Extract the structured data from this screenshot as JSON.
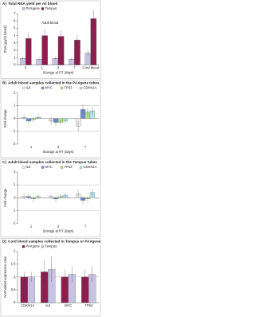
{
  "chart_data": [
    {
      "type": "bar",
      "label": "A)",
      "title": "Total RNA yield per ml blood",
      "ylabel": "RNA (µg/ml blood)",
      "xlabel": "Storage at RT (days)",
      "annotation": "Adult blood",
      "categories": [
        "0",
        "1",
        "3",
        "7",
        "Cord blood"
      ],
      "series": [
        {
          "name": "PAXgene",
          "color": "#c9c3e3",
          "values": [
            0.9,
            0.8,
            0.9,
            0.8,
            1.6
          ],
          "errors": [
            0.2,
            0.2,
            0.2,
            0.2,
            0.4
          ]
        },
        {
          "name": "Tempus",
          "color": "#8c1f4e",
          "values": [
            3.6,
            4.0,
            3.9,
            3.4,
            6.3
          ],
          "errors": [
            0.8,
            0.9,
            0.8,
            0.7,
            1.2
          ]
        }
      ],
      "ylim": [
        0,
        7
      ],
      "yticks": [
        0,
        1,
        2,
        3,
        4,
        5,
        6,
        7
      ]
    },
    {
      "type": "bar",
      "label": "B)",
      "title": "Adult blood samples collected in the PAXgene tubes",
      "ylabel": "Fold change",
      "xlabel": "Storage at RT (days)",
      "categories": [
        "1",
        "3",
        "7"
      ],
      "series": [
        {
          "name": "IL8",
          "color": "#eeeeee",
          "values": [
            0.1,
            -0.2,
            -0.6
          ],
          "errors": [
            0.2,
            0.3,
            0.4
          ]
        },
        {
          "name": "MYC",
          "color": "#6f8fd8",
          "values": [
            -0.2,
            -0.3,
            0.7
          ],
          "errors": [
            0.2,
            0.3,
            0.4
          ]
        },
        {
          "name": "TP53",
          "color": "#b9e08c",
          "values": [
            -0.1,
            -0.3,
            0.5
          ],
          "errors": [
            0.2,
            0.2,
            0.3
          ]
        },
        {
          "name": "CDKN1A",
          "color": "#b3e6f0",
          "values": [
            0.1,
            -0.2,
            0.6
          ],
          "errors": [
            0.2,
            0.2,
            0.3
          ]
        }
      ],
      "ylim": [
        -2,
        2
      ],
      "yticks": [
        -2,
        -1,
        0,
        1,
        2
      ],
      "hlines": [
        1,
        -1
      ]
    },
    {
      "type": "bar",
      "label": "C)",
      "title": "Adult blood samples collected in the Tempus tubes",
      "ylabel": "Fold change",
      "xlabel": "Storage at RT (days)",
      "categories": [
        "1",
        "3",
        "7"
      ],
      "series": [
        {
          "name": "IL8",
          "color": "#eeeeee",
          "values": [
            0.1,
            0.1,
            0.3
          ],
          "errors": [
            0.2,
            0.2,
            0.3
          ]
        },
        {
          "name": "MYC",
          "color": "#6f8fd8",
          "values": [
            0.1,
            -0.1,
            -0.2
          ],
          "errors": [
            0.2,
            0.2,
            0.3
          ]
        },
        {
          "name": "TP53",
          "color": "#b9e08c",
          "values": [
            -0.1,
            0.1,
            -0.1
          ],
          "errors": [
            0.2,
            0.2,
            0.2
          ]
        },
        {
          "name": "CDKN1A",
          "color": "#b3e6f0",
          "values": [
            0.1,
            0.2,
            0.4
          ],
          "errors": [
            0.2,
            0.2,
            0.3
          ]
        }
      ],
      "ylim": [
        -2,
        2
      ],
      "yticks": [
        -2,
        -1,
        0,
        1,
        2
      ],
      "hlines": [
        1,
        -1
      ]
    },
    {
      "type": "bar",
      "label": "D)",
      "title": "Cord blood samples collected in Tempus or PAXgene tubes",
      "ylabel": "Normalized expression ratio",
      "categories": [
        "CDKN1A",
        "IL8",
        "MYC",
        "TP53"
      ],
      "series": [
        {
          "name": "PAXgene",
          "color": "#8c1f4e",
          "values": [
            1.0,
            1.2,
            1.0,
            1.0
          ],
          "errors": [
            0.2,
            0.5,
            0.3,
            0.3
          ]
        },
        {
          "name": "Tempus",
          "color": "#c9c3e3",
          "values": [
            1.0,
            1.3,
            1.1,
            1.1
          ],
          "errors": [
            0.2,
            0.5,
            0.3,
            0.3
          ]
        }
      ],
      "ylim": [
        0,
        2
      ],
      "yticks": [
        0,
        0.5,
        1,
        1.5,
        2
      ],
      "hlines": [
        1
      ]
    }
  ]
}
